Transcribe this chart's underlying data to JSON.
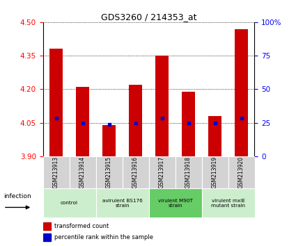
{
  "title": "GDS3260 / 214353_at",
  "samples": [
    "GSM213913",
    "GSM213914",
    "GSM213915",
    "GSM213916",
    "GSM213917",
    "GSM213918",
    "GSM213919",
    "GSM213920"
  ],
  "red_values": [
    4.38,
    4.21,
    4.04,
    4.22,
    4.35,
    4.19,
    4.08,
    4.47
  ],
  "blue_values": [
    4.07,
    4.05,
    4.043,
    4.05,
    4.07,
    4.05,
    4.05,
    4.07
  ],
  "y_min": 3.9,
  "y_max": 4.5,
  "y_ticks_left": [
    3.9,
    4.05,
    4.2,
    4.35,
    4.5
  ],
  "y_ticks_right": [
    0,
    25,
    50,
    75,
    100
  ],
  "group_labels": [
    "control",
    "avirulent BS176\nstrain",
    "virulent M90T\nstrain",
    "virulent mxiE\nmutant strain"
  ],
  "group_ranges": [
    [
      0,
      1
    ],
    [
      2,
      3
    ],
    [
      4,
      5
    ],
    [
      6,
      7
    ]
  ],
  "group_colors": [
    "#cceecc",
    "#cceecc",
    "#66cc66",
    "#cceecc"
  ],
  "bar_color": "#cc0000",
  "dot_color": "#0000cc",
  "infection_label": "infection"
}
